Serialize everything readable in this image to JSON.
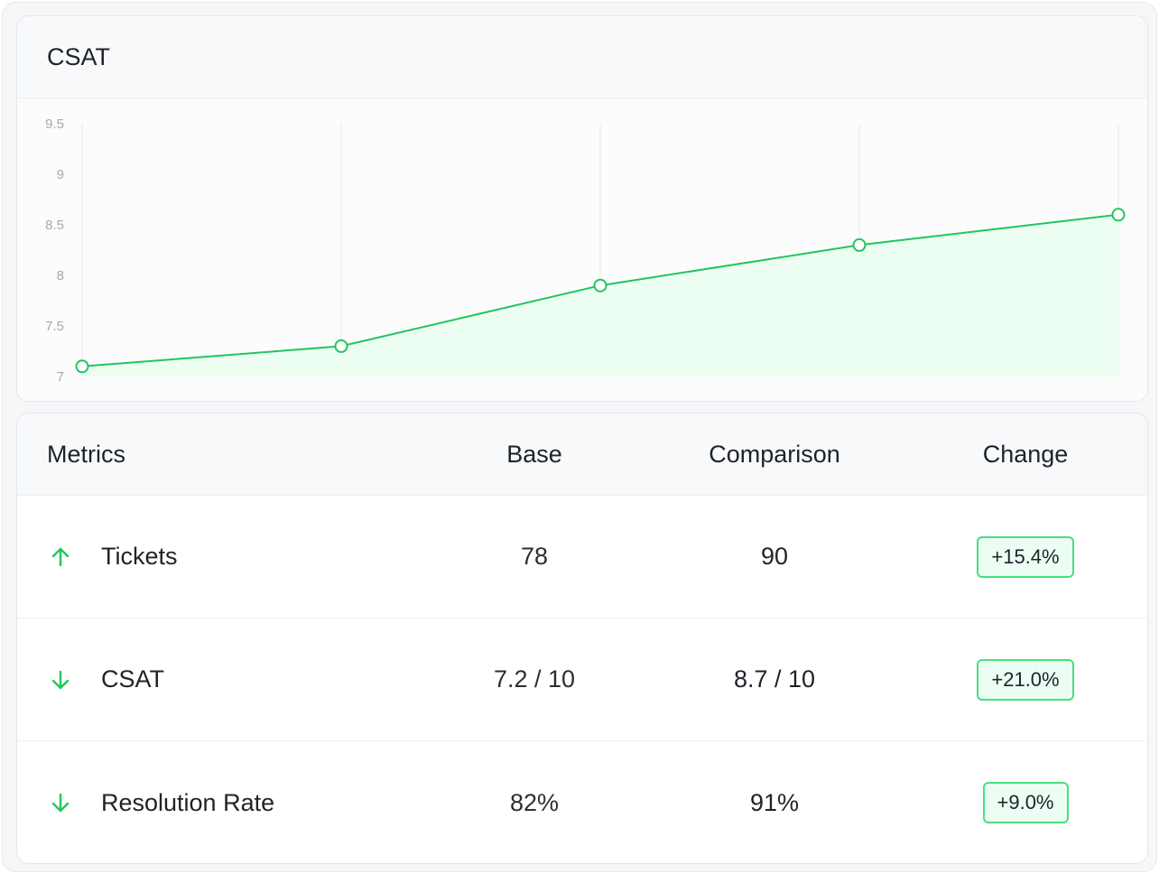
{
  "chart_title": "CSAT",
  "chart_data": {
    "type": "area",
    "title": "CSAT",
    "xlabel": "",
    "ylabel": "",
    "x": [
      1,
      2,
      3,
      4,
      5
    ],
    "values": [
      7.1,
      7.3,
      7.9,
      8.3,
      8.6
    ],
    "yticks": [
      "9.5",
      "9",
      "8.5",
      "8",
      "7.5",
      "7"
    ],
    "ylim": [
      7,
      9.5
    ],
    "grid": "vertical",
    "line_color": "#22c55e",
    "fill_color": "#ecfdf1"
  },
  "table": {
    "headers": {
      "metric": "Metrics",
      "base": "Base",
      "comparison": "Comparison",
      "change": "Change"
    },
    "rows": [
      {
        "trend": "up-arrow-icon",
        "metric": "Tickets",
        "base": "78",
        "comparison": "90",
        "change": "+15.4%"
      },
      {
        "trend": "down-arrow-icon",
        "metric": "CSAT",
        "base": "7.2 / 10",
        "comparison": "8.7 / 10",
        "change": "+21.0%"
      },
      {
        "trend": "down-arrow-icon",
        "metric": "Resolution Rate",
        "base": "82%",
        "comparison": "91%",
        "change": "+9.0%"
      }
    ]
  },
  "colors": {
    "accent": "#22c55e",
    "badge_border": "#4ade80",
    "badge_bg": "#ecfdf3"
  }
}
